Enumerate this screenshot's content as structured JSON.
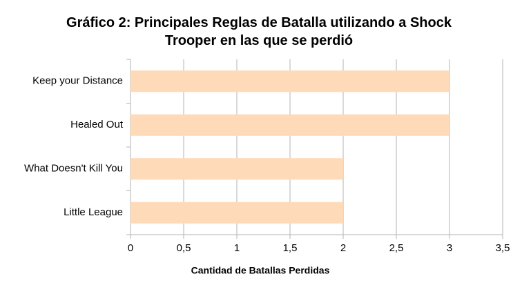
{
  "chart_data": {
    "type": "bar",
    "orientation": "horizontal",
    "title": "Gráfico 2: Principales Reglas de Batalla utilizando a Shock Trooper en las que se perdió",
    "x_label": "Cantidad de Batallas Perdidas",
    "categories": [
      "Keep your Distance",
      "Healed Out",
      "What Doesn't Kill You",
      "Little League"
    ],
    "values": [
      3,
      3,
      2,
      2
    ],
    "color": "#ffdab9",
    "xlim": [
      0,
      3.5
    ],
    "xticks": [
      0,
      {
        "value": 0.5,
        "label": "0,5"
      },
      1,
      {
        "value": 1.5,
        "label": "1,5"
      },
      2,
      {
        "value": 2.5,
        "label": "2,5"
      },
      3,
      {
        "value": 3.5,
        "label": "3,5"
      }
    ],
    "grid": true
  }
}
